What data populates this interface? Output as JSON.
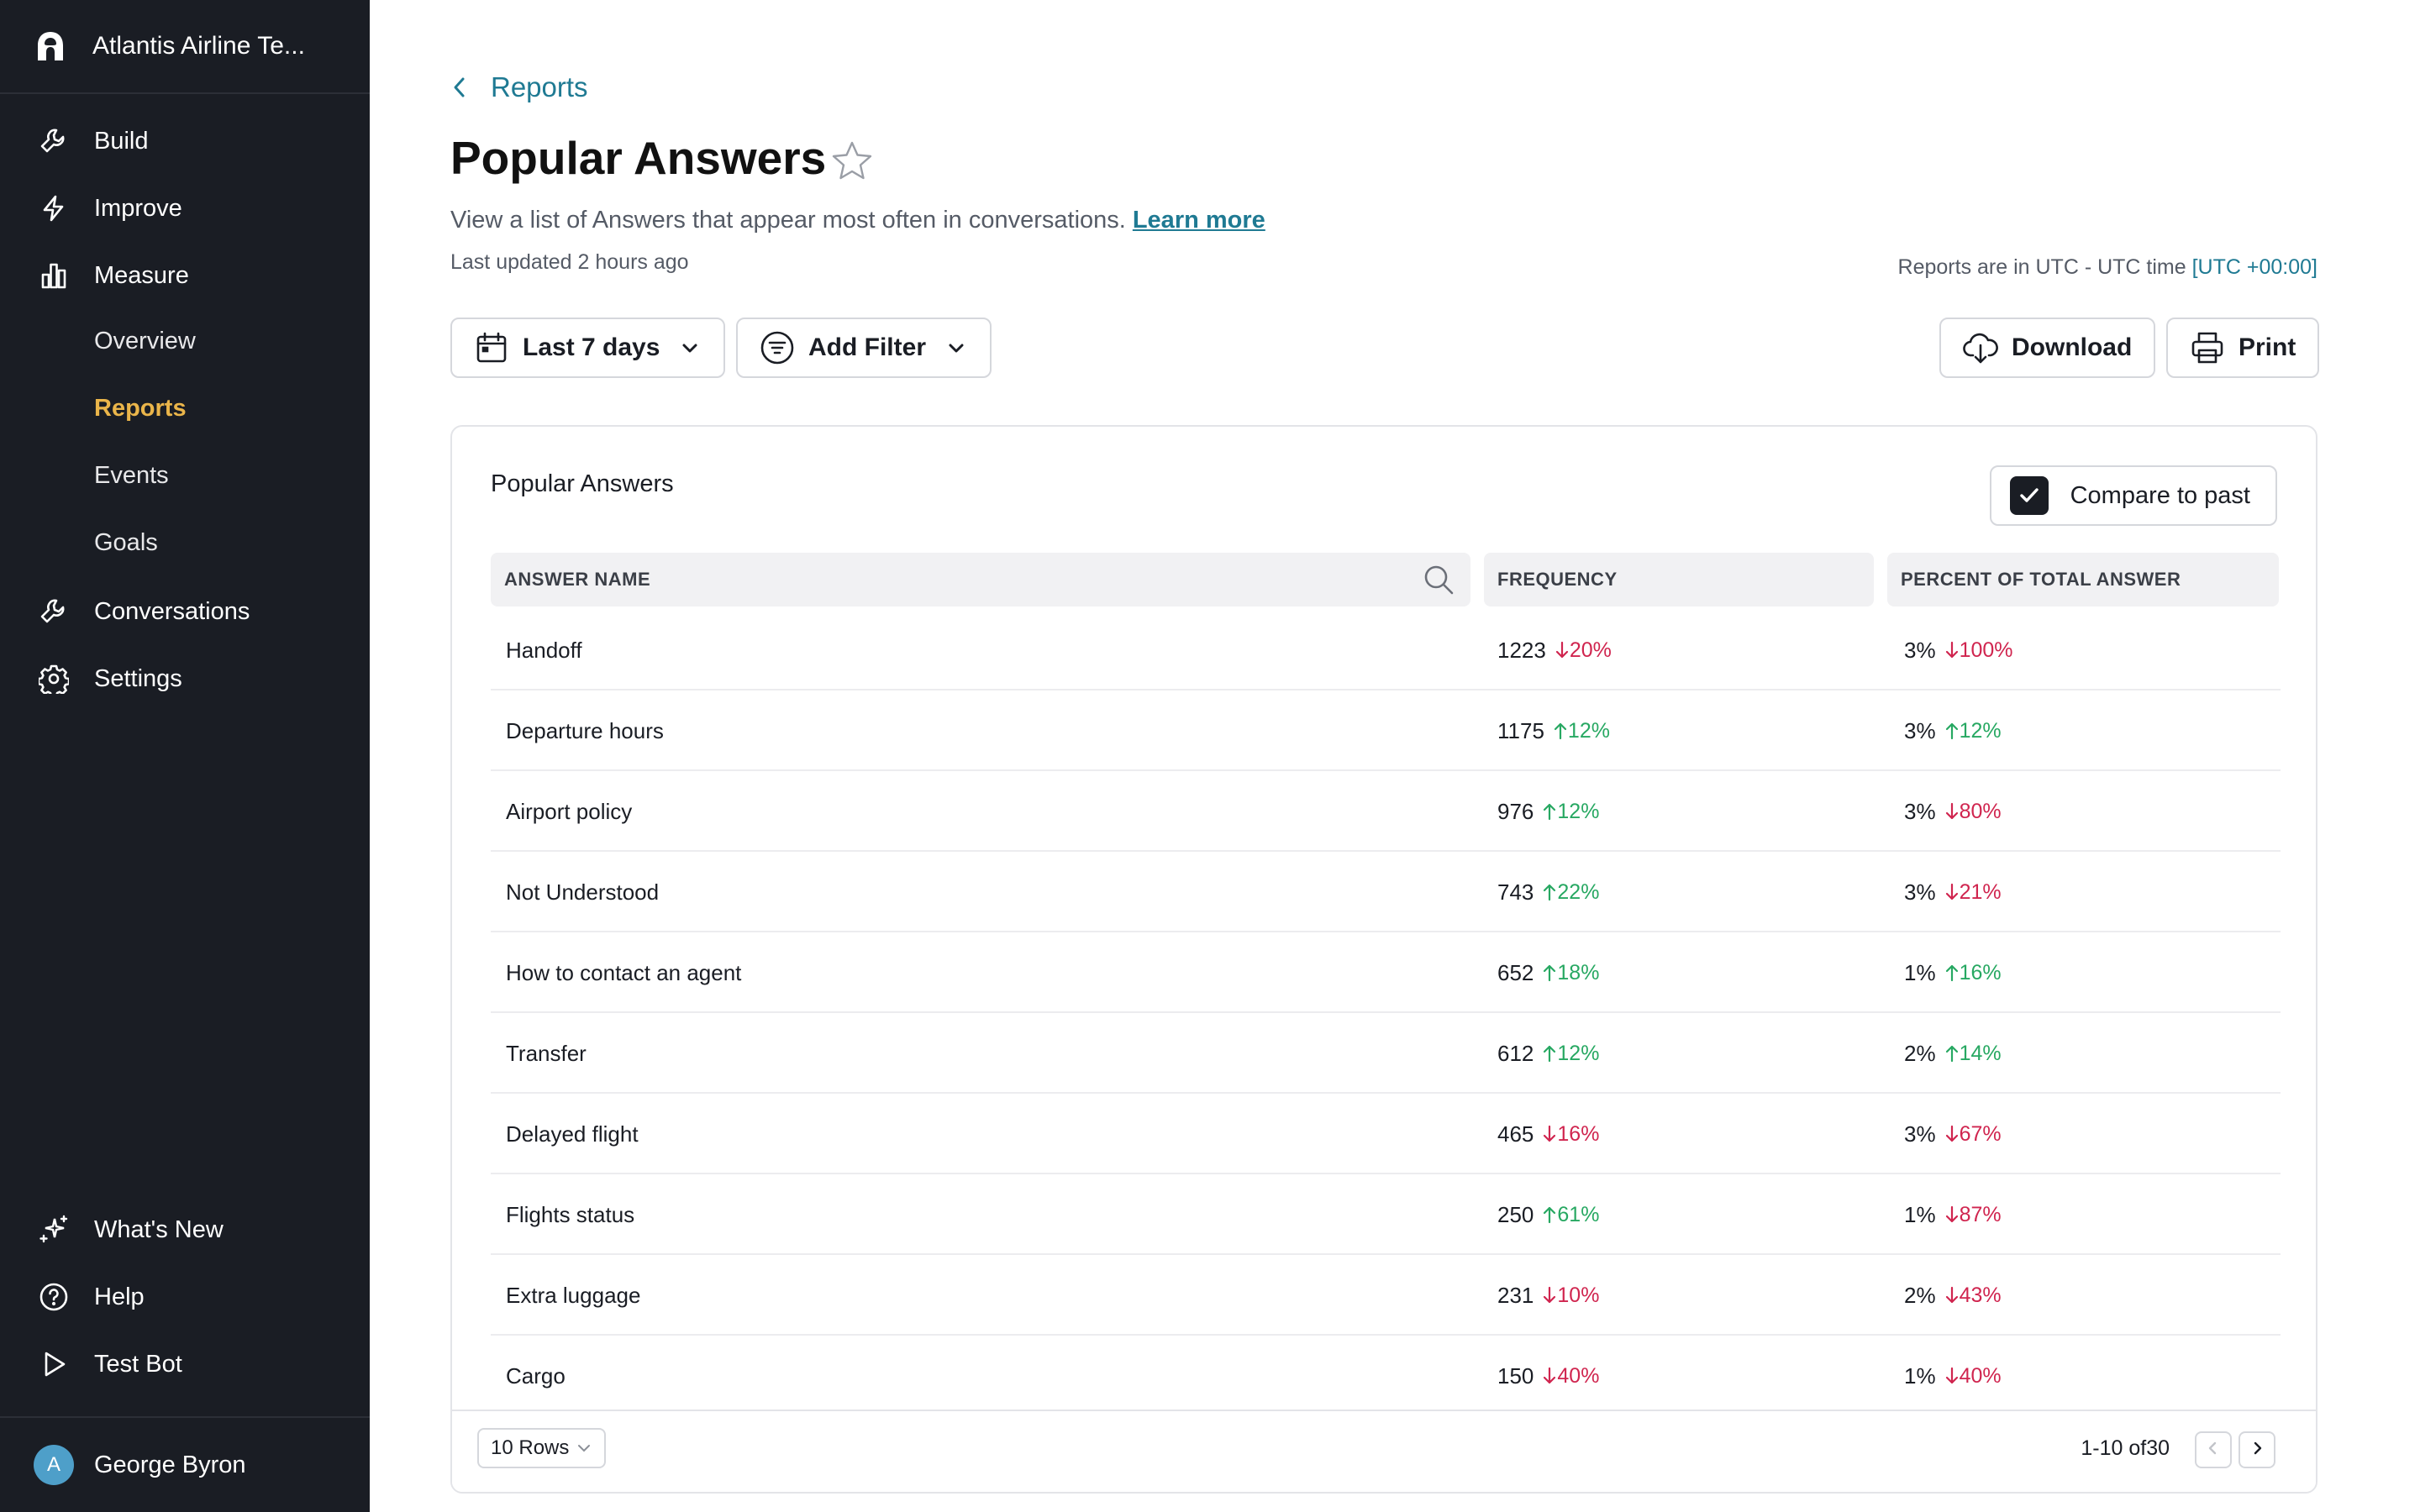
{
  "sidebar": {
    "workspace_name": "Atlantis Airline Te...",
    "nav": {
      "build": "Build",
      "improve": "Improve",
      "measure": "Measure",
      "overview": "Overview",
      "reports": "Reports",
      "events": "Events",
      "goals": "Goals",
      "conversations": "Conversations",
      "settings": "Settings",
      "whats_new": "What's New",
      "help": "Help",
      "test_bot": "Test Bot"
    },
    "user": {
      "initial": "A",
      "name": "George Byron"
    },
    "active_item": "Reports"
  },
  "header": {
    "breadcrumb": "Reports",
    "title": "Popular Answers",
    "subtitle": "View a list of Answers that appear most often in conversations.",
    "learn_more": "Learn more",
    "last_updated": "Last updated 2 hours ago",
    "utc_note": "Reports are in UTC - UTC time",
    "utc_offset": "[UTC +00:00]"
  },
  "toolbar": {
    "date_range": "Last 7 days",
    "add_filter": "Add Filter",
    "download": "Download",
    "print": "Print"
  },
  "card": {
    "title": "Popular Answers",
    "compare_label": "Compare to past",
    "compare_checked": true,
    "columns": [
      "ANSWER NAME",
      "FREQUENCY",
      "PERCENT OF TOTAL ANSWER"
    ],
    "rows": [
      {
        "name": "Handoff",
        "freq": "1223",
        "freq_delta": "20%",
        "freq_dir": "down",
        "pct": "3%",
        "pct_delta": "100%",
        "pct_dir": "down"
      },
      {
        "name": "Departure hours",
        "freq": "1175",
        "freq_delta": "12%",
        "freq_dir": "up",
        "pct": "3%",
        "pct_delta": "12%",
        "pct_dir": "up"
      },
      {
        "name": "Airport policy",
        "freq": "976",
        "freq_delta": "12%",
        "freq_dir": "up",
        "pct": "3%",
        "pct_delta": "80%",
        "pct_dir": "down"
      },
      {
        "name": "Not Understood",
        "freq": "743",
        "freq_delta": "22%",
        "freq_dir": "up",
        "pct": "3%",
        "pct_delta": "21%",
        "pct_dir": "down"
      },
      {
        "name": "How to contact an agent",
        "freq": "652",
        "freq_delta": "18%",
        "freq_dir": "up",
        "pct": "1%",
        "pct_delta": "16%",
        "pct_dir": "up"
      },
      {
        "name": "Transfer",
        "freq": "612",
        "freq_delta": "12%",
        "freq_dir": "up",
        "pct": "2%",
        "pct_delta": "14%",
        "pct_dir": "up"
      },
      {
        "name": "Delayed flight",
        "freq": "465",
        "freq_delta": "16%",
        "freq_dir": "down",
        "pct": "3%",
        "pct_delta": "67%",
        "pct_dir": "down"
      },
      {
        "name": "Flights status",
        "freq": "250",
        "freq_delta": "61%",
        "freq_dir": "up",
        "pct": "1%",
        "pct_delta": "87%",
        "pct_dir": "down"
      },
      {
        "name": "Extra luggage",
        "freq": "231",
        "freq_delta": "10%",
        "freq_dir": "down",
        "pct": "2%",
        "pct_delta": "43%",
        "pct_dir": "down"
      },
      {
        "name": "Cargo",
        "freq": "150",
        "freq_delta": "40%",
        "freq_dir": "down",
        "pct": "1%",
        "pct_delta": "40%",
        "pct_dir": "down"
      }
    ],
    "rows_per_page": "10 Rows",
    "pagination": "1-10 of30"
  },
  "colors": {
    "sidebar_bg": "#1a1d24",
    "active_nav": "#eab54a",
    "link": "#1f7a93",
    "up": "#27a862",
    "down": "#d0254f"
  },
  "icons": {
    "build": "wrench-icon",
    "improve": "lightning-icon",
    "measure": "bar-chart-icon",
    "conversations": "wrench-icon",
    "settings": "gear-icon",
    "whats_new": "sparkle-icon",
    "help": "question-circle-icon",
    "test_bot": "play-icon"
  }
}
